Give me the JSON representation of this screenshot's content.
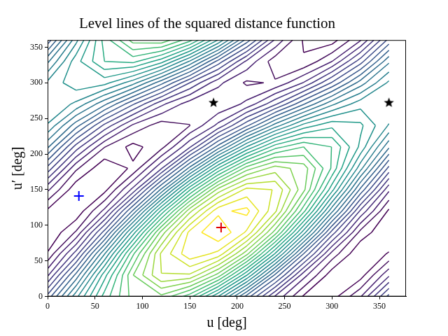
{
  "chart_data": {
    "type": "contour",
    "title": "Level lines of the squared distance function",
    "x_label": "u [deg]",
    "y_label": "u′ [deg]",
    "x": [
      0,
      30,
      60,
      90,
      120,
      150,
      180,
      210,
      240,
      270,
      300,
      330,
      360
    ],
    "y": [
      0,
      30,
      60,
      90,
      120,
      150,
      180,
      210,
      240,
      270,
      300,
      330,
      360
    ],
    "z": [
      [
        4.17,
        6.84,
        9.22,
        10.71,
        10.88,
        9.69,
        7.47,
        4.8,
        2.42,
        0.93,
        0.76,
        1.95,
        4.17
      ],
      [
        2.4,
        5.16,
        8.3,
        10.98,
        12.49,
        12.42,
        10.78,
        8.02,
        4.88,
        2.2,
        0.69,
        0.76,
        2.4
      ],
      [
        1.05,
        3.23,
        6.46,
        9.9,
        12.6,
        13.87,
        13.35,
        11.17,
        7.94,
        4.5,
        1.8,
        0.53,
        1.05
      ],
      [
        0.5,
        1.56,
        4.21,
        7.74,
        11.2,
        13.66,
        14.48,
        13.42,
        10.77,
        7.24,
        3.78,
        1.32,
        0.5
      ],
      [
        0.89,
        0.61,
        2.14,
        5.09,
        8.64,
        11.86,
        13.87,
        14.15,
        12.62,
        9.67,
        6.12,
        2.9,
        0.89
      ],
      [
        2.1,
        0.63,
        0.82,
        2.65,
        5.62,
        8.93,
        11.7,
        13.17,
        12.98,
        11.15,
        8.18,
        4.87,
        2.1
      ],
      [
        3.83,
        1.6,
        0.6,
        1.09,
        2.94,
        5.67,
        8.53,
        10.76,
        11.76,
        11.27,
        9.42,
        6.69,
        3.83
      ],
      [
        5.6,
        3.28,
        1.52,
        0.82,
        1.33,
        2.94,
        5.22,
        7.54,
        9.3,
        10.0,
        9.49,
        7.88,
        5.6
      ],
      [
        6.95,
        5.21,
        3.36,
        1.9,
        1.22,
        1.49,
        2.65,
        4.39,
        6.24,
        7.7,
        8.38,
        8.11,
        6.95
      ],
      [
        7.5,
        6.88,
        5.61,
        4.06,
        2.62,
        1.7,
        1.52,
        2.14,
        3.41,
        4.96,
        6.4,
        7.32,
        7.5
      ],
      [
        7.11,
        7.83,
        7.68,
        6.71,
        5.18,
        3.5,
        2.13,
        1.41,
        1.56,
        2.53,
        4.06,
        5.74,
        7.11
      ],
      [
        5.9,
        7.81,
        9.0,
        9.15,
        8.2,
        6.43,
        4.3,
        2.39,
        1.2,
        1.05,
        2.0,
        3.77,
        5.9
      ],
      [
        4.17,
        6.84,
        9.22,
        10.71,
        10.88,
        9.69,
        7.47,
        4.8,
        2.42,
        0.93,
        0.76,
        1.95,
        4.17
      ]
    ],
    "levels": [
      1,
      1.5,
      2,
      2.5,
      3,
      3.5,
      4,
      4.5,
      5,
      5.5,
      6,
      6.5,
      7,
      7.5,
      8,
      8.5,
      9,
      9.5,
      10,
      10.5,
      11,
      11.5,
      12,
      12.5,
      13,
      13.5,
      14
    ],
    "colors": [
      "#440154",
      "#46105e",
      "#471f70",
      "#472c7a",
      "#443780",
      "#424286",
      "#3d4c89",
      "#39578b",
      "#34618d",
      "#306b8d",
      "#2c748e",
      "#287e8e",
      "#24878d",
      "#21918c",
      "#219a89",
      "#22a386",
      "#27ab81",
      "#34b479",
      "#41bd72",
      "#55c566",
      "#69cb5b",
      "#7fd24e",
      "#99d73d",
      "#b3dd2c",
      "#cce126",
      "#e5e425",
      "#fde725"
    ],
    "markers": [
      {
        "x": 33,
        "y": 141,
        "color": "#0000ff",
        "marker": "plus"
      },
      {
        "x": 183,
        "y": 97,
        "color": "#e00000",
        "marker": "plus"
      },
      {
        "x": 175,
        "y": 272,
        "color": "#000000",
        "marker": "star"
      },
      {
        "x": 360,
        "y": 272,
        "color": "#000000",
        "marker": "star"
      }
    ],
    "xlim": [
      0,
      378
    ],
    "ylim": [
      0,
      360
    ],
    "xticks": [
      0,
      50,
      100,
      150,
      200,
      250,
      300,
      350
    ],
    "yticks": [
      0,
      50,
      100,
      150,
      200,
      250,
      300,
      350
    ],
    "grid": false
  }
}
